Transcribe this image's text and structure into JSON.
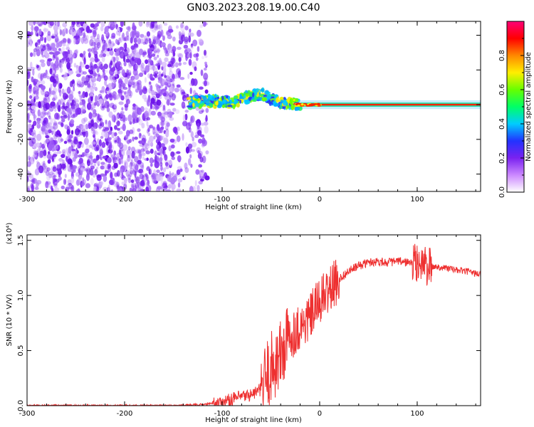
{
  "figure_title": "GN03.2023.208.19.00.C40",
  "colors": {
    "snr_line": "#ee3030",
    "noise": "#7a22f0",
    "frame": "#000000"
  },
  "chart_data": [
    {
      "type": "heatmap",
      "title": "GN03.2023.208.19.00.C40",
      "xlabel": "Height of straight line (km)",
      "ylabel": "Frequency (Hz)",
      "xlim": [
        -300,
        165
      ],
      "ylim": [
        -50,
        48
      ],
      "x_ticks": [
        {
          "value": -300,
          "label": "-300"
        },
        {
          "value": -200,
          "label": "-200"
        },
        {
          "value": -100,
          "label": "-100"
        },
        {
          "value": 0,
          "label": "0"
        },
        {
          "value": 100,
          "label": "100"
        }
      ],
      "y_ticks": [
        {
          "value": -40,
          "label": "-40"
        },
        {
          "value": -20,
          "label": "-20"
        },
        {
          "value": 0,
          "label": "0"
        },
        {
          "value": 20,
          "label": "20"
        },
        {
          "value": 40,
          "label": "40"
        }
      ],
      "colorbar": {
        "label": "Normalized spectral amplitude",
        "range": [
          0,
          1
        ],
        "ticks": [
          {
            "value": 0.0,
            "label": "0.0"
          },
          {
            "value": 0.2,
            "label": "0.2"
          },
          {
            "value": 0.4,
            "label": "0.4"
          },
          {
            "value": 0.6,
            "label": "0.6"
          },
          {
            "value": 0.8,
            "label": "0.8"
          }
        ],
        "colors": [
          "#ffffff",
          "#cc88ff",
          "#7a22f0",
          "#2233ff",
          "#00ccff",
          "#00ff66",
          "#66ff00",
          "#ffee00",
          "#ff8800",
          "#ff0000",
          "#ff0077"
        ]
      },
      "noise_region_x": [
        -300,
        -115
      ],
      "signal_track": [
        {
          "x": -135,
          "y": 1
        },
        {
          "x": -120,
          "y": 2
        },
        {
          "x": -100,
          "y": 2
        },
        {
          "x": -90,
          "y": 1
        },
        {
          "x": -80,
          "y": 3
        },
        {
          "x": -70,
          "y": 5
        },
        {
          "x": -60,
          "y": 6
        },
        {
          "x": -50,
          "y": 3
        },
        {
          "x": -40,
          "y": 1
        },
        {
          "x": -25,
          "y": 0
        },
        {
          "x": 0,
          "y": 0
        },
        {
          "x": 165,
          "y": 0
        }
      ]
    },
    {
      "type": "line",
      "xlabel": "Height of straight line (km)",
      "ylabel": "SNR (10 * V/V)",
      "y_multiplier": "(x10⁴)",
      "xlim": [
        -300,
        165
      ],
      "ylim": [
        0,
        1.55
      ],
      "x_ticks": [
        {
          "value": -300,
          "label": "-300"
        },
        {
          "value": -200,
          "label": "-200"
        },
        {
          "value": -100,
          "label": "-100"
        },
        {
          "value": 0,
          "label": "0"
        },
        {
          "value": 100,
          "label": "100"
        }
      ],
      "y_ticks": [
        {
          "value": 0.0,
          "label": "0.0"
        },
        {
          "value": 0.5,
          "label": "0.5"
        },
        {
          "value": 1.0,
          "label": "1.0"
        },
        {
          "value": 1.5,
          "label": "1.5"
        }
      ],
      "series": [
        {
          "color": "#ee3030",
          "x": [
            -300,
            -250,
            -200,
            -150,
            -120,
            -100,
            -90,
            -80,
            -70,
            -60,
            -55,
            -50,
            -45,
            -40,
            -35,
            -30,
            -25,
            -20,
            -15,
            -10,
            -5,
            0,
            10,
            20,
            30,
            40,
            50,
            60,
            70,
            80,
            90,
            100,
            105,
            110,
            120,
            130,
            140,
            150,
            165
          ],
          "y": [
            0.0,
            0.0,
            0.0,
            0.0,
            0.01,
            0.03,
            0.06,
            0.08,
            0.1,
            0.15,
            0.25,
            0.33,
            0.4,
            0.45,
            0.55,
            0.62,
            0.68,
            0.72,
            0.75,
            0.8,
            0.88,
            0.95,
            1.05,
            1.15,
            1.22,
            1.27,
            1.3,
            1.31,
            1.3,
            1.31,
            1.3,
            1.29,
            1.3,
            1.26,
            1.26,
            1.25,
            1.23,
            1.22,
            1.19
          ]
        }
      ]
    }
  ]
}
